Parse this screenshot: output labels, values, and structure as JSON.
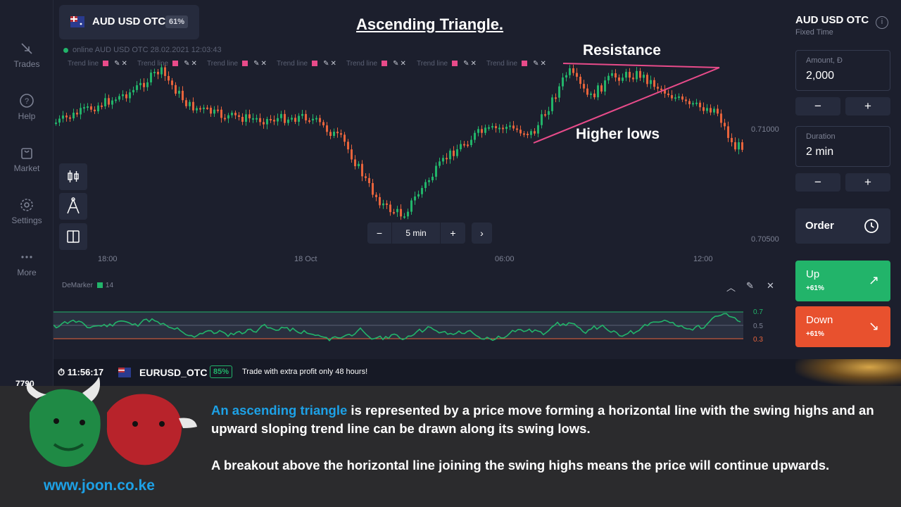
{
  "nav": {
    "items": [
      {
        "label": "Trades",
        "icon": "trades-icon"
      },
      {
        "label": "Help",
        "icon": "help-icon"
      },
      {
        "label": "Market",
        "icon": "market-icon"
      },
      {
        "label": "Settings",
        "icon": "settings-icon"
      },
      {
        "label": "More",
        "icon": "more-icon"
      }
    ]
  },
  "header": {
    "asset": "AUD USD OTC",
    "payout": "61%",
    "chart_title": "Ascending Triangle.",
    "online": "online AUD USD OTC  28.02.2021 12:03:43",
    "trend_label": "Trend line"
  },
  "chart": {
    "price_high": "0.71000",
    "price_low": "0.70500",
    "times": [
      "18:00",
      "18 Oct",
      "06:00",
      "12:00"
    ],
    "timeframe": "5 min",
    "annotations": {
      "resistance": "Resistance",
      "higher_lows": "Higher lows"
    },
    "colors": {
      "up": "#22b46a",
      "down": "#e8643c",
      "trendline": "#e84b8a"
    }
  },
  "indicator": {
    "name": "DeMarker",
    "period": "14",
    "levels": [
      "0.7",
      "0.5",
      "0.3"
    ]
  },
  "status": {
    "time": "11:56:17",
    "symbol": "EURUSD_OTC",
    "payout": "85%",
    "message": "Trade with extra profit only 48 hours!",
    "side_number": "7790"
  },
  "panel": {
    "asset": "AUD USD OTC",
    "mode": "Fixed Time",
    "amount_label": "Amount, Đ",
    "amount_value": "2,000",
    "duration_label": "Duration",
    "duration_value": "2 min",
    "minus": "−",
    "plus": "+",
    "order_label": "Order",
    "up_label": "Up",
    "up_payout": "+61%",
    "down_label": "Down",
    "down_payout": "+61%"
  },
  "caption": {
    "highlight": "An ascending triangle",
    "p1_rest": " is represented  by a price move forming a horizontal line with the swing highs and an upward sloping trend line can be drawn along its swing lows.",
    "p2": "A breakout above the horizontal line joining the swing highs means the price will continue upwards.",
    "website": "www.joon.co.ke"
  }
}
